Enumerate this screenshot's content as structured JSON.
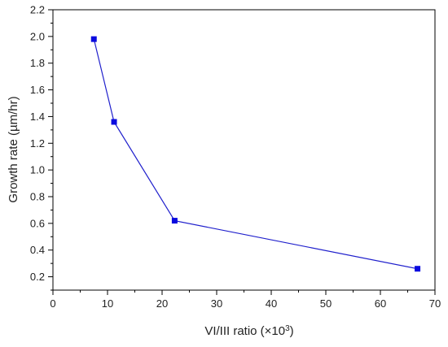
{
  "chart_data": {
    "type": "line",
    "xlabel": "VI/III ratio (×10³)",
    "xlabel_main": "VI/III ratio (×10",
    "xlabel_sup": "3",
    "xlabel_end": ")",
    "ylabel": "Growth rate (µm/hr)",
    "xlim": [
      0,
      70
    ],
    "ylim": [
      0.1,
      2.2
    ],
    "x_ticks": [
      0,
      10,
      20,
      30,
      40,
      50,
      60,
      70
    ],
    "x_tick_labels": [
      "0",
      "10",
      "20",
      "30",
      "40",
      "50",
      "60",
      "70"
    ],
    "y_ticks": [
      0.2,
      0.4,
      0.6,
      0.8,
      1.0,
      1.2,
      1.4,
      1.6,
      1.8,
      2.0,
      2.2
    ],
    "y_tick_labels": [
      "0.2",
      "0.4",
      "0.6",
      "0.8",
      "1.0",
      "1.2",
      "1.4",
      "1.6",
      "1.8",
      "2.0",
      "2.2"
    ],
    "grid": false,
    "legend": "none",
    "series": [
      {
        "x": [
          7.5,
          11.2,
          22.3,
          66.8
        ],
        "values": [
          1.98,
          1.36,
          0.62,
          0.26
        ],
        "color": "#1f1fcc",
        "marker_color": "#0a0adf",
        "marker": "square"
      }
    ]
  }
}
